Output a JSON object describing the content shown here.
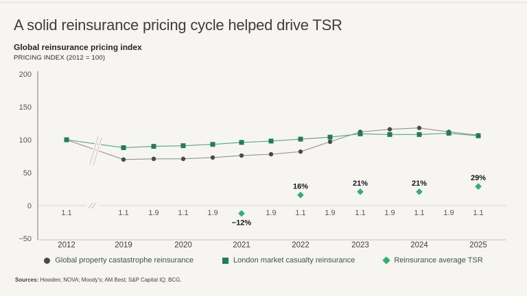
{
  "header": {
    "title": "A solid reinsurance pricing cycle helped drive TSR",
    "subtitle": "Global reinsurance pricing index",
    "unit_label": "PRICING INDEX (2012 = 100)"
  },
  "chart_data": {
    "type": "line",
    "title": "Global reinsurance pricing index",
    "ylabel": "PRICING INDEX (2012 = 100)",
    "ylim": [
      -50,
      200
    ],
    "ytick_values": [
      200,
      150,
      100,
      50,
      0,
      -50
    ],
    "yticks": [
      "200",
      "150",
      "100",
      "50",
      "0",
      "−50"
    ],
    "grid": "zero-line-only",
    "axis_break": "between 2012 and 2019",
    "x_tick_labels": [
      "1.1",
      "1.1",
      "1.9",
      "1.1",
      "1.9",
      "",
      "1.9",
      "1.1",
      "1.9",
      "1.1",
      "1.9",
      "1.1",
      "1.9",
      "1.1"
    ],
    "year_ticks": [
      {
        "label": "2012",
        "x_index": 0
      },
      {
        "label": "2019",
        "x_index": 1
      },
      {
        "label": "2020",
        "x_index": 3
      },
      {
        "label": "2021",
        "x_index": 5
      },
      {
        "label": "2022",
        "x_index": 7
      },
      {
        "label": "2023",
        "x_index": 9
      },
      {
        "label": "2024",
        "x_index": 11
      },
      {
        "label": "2025",
        "x_index": 13
      }
    ],
    "series": [
      {
        "name": "Global property castastrophe reinsurance",
        "marker": "circle",
        "color": "#4b4a47",
        "line_color": "#95938f",
        "values": [
          100,
          70,
          71,
          71,
          73,
          76,
          78,
          82,
          97,
          112,
          116,
          118,
          112,
          107
        ]
      },
      {
        "name": "London market casualty reinsurance",
        "marker": "square",
        "color": "#1f7f51",
        "line_color": "#52a67b",
        "values": [
          100,
          88,
          90,
          91,
          93,
          96,
          98,
          101,
          104,
          109,
          108,
          108,
          110,
          106
        ]
      }
    ],
    "tsr_series": {
      "name": "Reinsurance average TSR",
      "marker": "diamond",
      "color": "#2eb26a",
      "points": [
        {
          "year": "2021",
          "x_index": 5,
          "value": -12,
          "label": "−12%",
          "label_position": "below"
        },
        {
          "year": "2022",
          "x_index": 7,
          "value": 16,
          "label": "16%",
          "label_position": "above"
        },
        {
          "year": "2023",
          "x_index": 9,
          "value": 21,
          "label": "21%",
          "label_position": "above"
        },
        {
          "year": "2024",
          "x_index": 11,
          "value": 21,
          "label": "21%",
          "label_position": "above"
        },
        {
          "year": "2025",
          "x_index": 13,
          "value": 29,
          "label": "29%",
          "label_position": "above"
        }
      ]
    },
    "legend_position": "bottom"
  },
  "legend": {
    "items": [
      {
        "label": "Global property castastrophe reinsurance",
        "marker": "circle",
        "color": "#4b4a47"
      },
      {
        "label": "London market casualty reinsurance",
        "marker": "square",
        "color": "#1f7f51"
      },
      {
        "label": "Reinsurance average TSR",
        "marker": "diamond",
        "color": "#2eb26a"
      }
    ]
  },
  "footer": {
    "sources_label": "Sources:",
    "sources_text": " Howden; NOVA; Moody's; AM Best; S&P Capital IQ; BCG."
  }
}
